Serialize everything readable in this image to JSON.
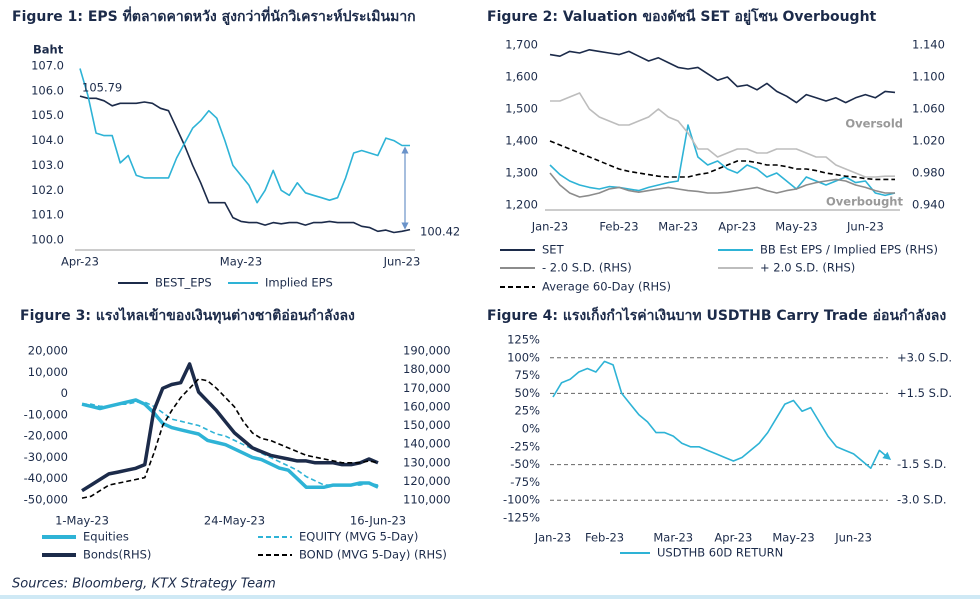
{
  "chart_data": [
    {
      "type": "line",
      "title": "Figure 1: EPS ที่ตลาดคาดหวัง สูงกว่าที่นักวิเคราะห์ประเมินมาก",
      "ylabel": "Baht",
      "categories": [
        "Apr-23",
        null,
        null,
        null,
        null,
        null,
        null,
        null,
        null,
        null,
        null,
        null,
        null,
        null,
        null,
        null,
        null,
        null,
        null,
        null,
        "May-23",
        null,
        null,
        null,
        null,
        null,
        null,
        null,
        null,
        null,
        null,
        null,
        null,
        null,
        null,
        null,
        null,
        null,
        null,
        null,
        "Jun-23",
        null
      ],
      "ylim": [
        100,
        107
      ],
      "yticks": [
        {
          "value": 100,
          "label": "100.0"
        },
        {
          "value": 101,
          "label": "101.0"
        },
        {
          "value": 102,
          "label": "102.0"
        },
        {
          "value": 103,
          "label": "103.0"
        },
        {
          "value": 104,
          "label": "104.0"
        },
        {
          "value": 105,
          "label": "105.0"
        },
        {
          "value": 106,
          "label": "106.0"
        },
        {
          "value": 107,
          "label": "107.0"
        }
      ],
      "series": [
        {
          "name": "BEST_EPS",
          "color": "#1c2b4a",
          "line_style": "solid",
          "values": [
            105.79,
            105.7,
            105.7,
            105.6,
            105.4,
            105.5,
            105.5,
            105.5,
            105.55,
            105.5,
            105.3,
            105.2,
            104.5,
            103.8,
            103.0,
            102.3,
            101.5,
            101.5,
            101.5,
            100.9,
            100.75,
            100.7,
            100.7,
            100.6,
            100.7,
            100.65,
            100.7,
            100.7,
            100.6,
            100.7,
            100.7,
            100.75,
            100.7,
            100.7,
            100.7,
            100.55,
            100.5,
            100.35,
            100.4,
            100.3,
            100.35,
            100.42
          ]
        },
        {
          "name": "Implied EPS",
          "color": "#2eb3d6",
          "line_style": "solid",
          "values": [
            106.9,
            105.8,
            104.3,
            104.2,
            104.2,
            103.1,
            103.4,
            102.6,
            102.5,
            102.5,
            102.5,
            102.5,
            103.3,
            103.9,
            104.5,
            104.8,
            105.2,
            104.9,
            104.0,
            103.0,
            102.6,
            102.2,
            101.5,
            102.0,
            102.8,
            102.0,
            101.8,
            102.3,
            101.9,
            101.8,
            101.7,
            101.6,
            101.7,
            102.5,
            103.5,
            103.6,
            103.5,
            103.4,
            104.1,
            104.0,
            103.8,
            103.8
          ]
        }
      ],
      "annotations": [
        "105.79",
        "100.42"
      ]
    },
    {
      "type": "line",
      "title": "Figure 2: Valuation ของดัชนี SET อยู่โซน Overbought",
      "categories": [
        "Jan-23",
        null,
        null,
        null,
        null,
        null,
        null,
        "Feb-23",
        null,
        null,
        null,
        null,
        null,
        "Mar-23",
        null,
        null,
        null,
        null,
        null,
        "Apr-23",
        null,
        null,
        null,
        null,
        null,
        "May-23",
        null,
        null,
        null,
        null,
        null,
        null,
        "Jun-23",
        null,
        null,
        null
      ],
      "ylim": [
        1200,
        1700
      ],
      "yticks": [
        {
          "value": 1200,
          "label": "1,200"
        },
        {
          "value": 1300,
          "label": "1,300"
        },
        {
          "value": 1400,
          "label": "1,400"
        },
        {
          "value": 1500,
          "label": "1,500"
        },
        {
          "value": 1600,
          "label": "1,600"
        },
        {
          "value": 1700,
          "label": "1,700"
        }
      ],
      "y2lim": [
        0.94,
        1.14
      ],
      "y2ticks": [
        {
          "value": 0.94,
          "label": "0.940"
        },
        {
          "value": 0.98,
          "label": "0.980"
        },
        {
          "value": 1.02,
          "label": "1.020"
        },
        {
          "value": 1.06,
          "label": "1.060"
        },
        {
          "value": 1.1,
          "label": "1.100"
        },
        {
          "value": 1.14,
          "label": "1.140"
        }
      ],
      "series": [
        {
          "name": "SET",
          "color": "#1c2b4a",
          "line_style": "solid",
          "values": [
            1670,
            1665,
            1680,
            1675,
            1685,
            1680,
            1675,
            1670,
            1680,
            1665,
            1650,
            1660,
            1645,
            1630,
            1625,
            1630,
            1610,
            1590,
            1600,
            1570,
            1575,
            1560,
            1580,
            1555,
            1540,
            1520,
            1545,
            1535,
            1525,
            1535,
            1520,
            1535,
            1545,
            1535,
            1555,
            1552
          ]
        },
        {
          "name": "BB Est EPS / Implied EPS (RHS)",
          "color": "#2eb3d6",
          "axis": "y2",
          "line_style": "solid",
          "values": [
            0.99,
            0.978,
            0.97,
            0.965,
            0.962,
            0.96,
            0.963,
            0.962,
            0.96,
            0.958,
            0.962,
            0.965,
            0.968,
            0.97,
            1.04,
            1.0,
            0.99,
            0.995,
            0.985,
            0.98,
            0.99,
            0.985,
            0.975,
            0.98,
            0.97,
            0.96,
            0.975,
            0.97,
            0.965,
            0.97,
            0.975,
            0.968,
            0.97,
            0.955,
            0.952,
            0.955
          ]
        },
        {
          "name": "- 2.0 S.D. (RHS)",
          "color": "#8c8c8c",
          "axis": "y2",
          "line_style": "solid",
          "values": [
            0.98,
            0.965,
            0.955,
            0.95,
            0.952,
            0.955,
            0.96,
            0.962,
            0.958,
            0.956,
            0.958,
            0.96,
            0.962,
            0.96,
            0.958,
            0.957,
            0.955,
            0.955,
            0.956,
            0.958,
            0.96,
            0.962,
            0.958,
            0.955,
            0.958,
            0.96,
            0.965,
            0.968,
            0.97,
            0.972,
            0.97,
            0.965,
            0.962,
            0.958,
            0.955,
            0.955
          ]
        },
        {
          "name": "+ 2.0 S.D. (RHS)",
          "color": "#bdbdbd",
          "axis": "y2",
          "line_style": "solid",
          "values": [
            1.07,
            1.07,
            1.075,
            1.08,
            1.06,
            1.05,
            1.045,
            1.04,
            1.04,
            1.045,
            1.05,
            1.06,
            1.05,
            1.045,
            1.03,
            1.01,
            1.01,
            1.0,
            1.005,
            1.01,
            1.01,
            1.005,
            1.005,
            1.01,
            1.01,
            1.01,
            1.005,
            1.0,
            1.0,
            0.99,
            0.985,
            0.98,
            0.975,
            0.975,
            0.976,
            0.976
          ]
        },
        {
          "name": "Average 60-Day (RHS)",
          "color": "#000000",
          "axis": "y2",
          "line_style": "dashed",
          "values": [
            1.02,
            1.015,
            1.01,
            1.005,
            1.0,
            0.995,
            0.99,
            0.985,
            0.982,
            0.98,
            0.978,
            0.976,
            0.975,
            0.975,
            0.975,
            0.978,
            0.98,
            0.985,
            0.99,
            0.995,
            0.995,
            0.993,
            0.99,
            0.99,
            0.988,
            0.985,
            0.985,
            0.983,
            0.98,
            0.978,
            0.976,
            0.975,
            0.973,
            0.972,
            0.972,
            0.972
          ]
        }
      ],
      "annotations": [
        "Oversold",
        "Overbought"
      ]
    },
    {
      "type": "line",
      "title": "Figure 3: แรงไหลเข้าของเงินทุนต่างชาติอ่อนกำลังลง",
      "categories": [
        "1-May-23",
        null,
        null,
        null,
        null,
        null,
        null,
        null,
        null,
        null,
        null,
        null,
        null,
        null,
        null,
        null,
        null,
        "24-May-23",
        null,
        null,
        null,
        null,
        null,
        null,
        null,
        null,
        null,
        null,
        null,
        null,
        null,
        null,
        null,
        "16-Jun-23"
      ],
      "ylim": [
        -50000,
        20000
      ],
      "yticks": [
        {
          "value": -50000,
          "label": "-50,000"
        },
        {
          "value": -40000,
          "label": "-40,000"
        },
        {
          "value": -30000,
          "label": "-30,000"
        },
        {
          "value": -20000,
          "label": "-20,000"
        },
        {
          "value": -10000,
          "label": "-10,000"
        },
        0,
        {
          "value": 10000,
          "label": "10,000"
        },
        {
          "value": 20000,
          "label": "20,000"
        }
      ],
      "y2lim": [
        110000,
        190000
      ],
      "y2ticks": [
        {
          "value": 110000,
          "label": "110,000"
        },
        {
          "value": 120000,
          "label": "120,000"
        },
        {
          "value": 130000,
          "label": "130,000"
        },
        {
          "value": 140000,
          "label": "140,000"
        },
        {
          "value": 150000,
          "label": "150,000"
        },
        {
          "value": 160000,
          "label": "160,000"
        },
        {
          "value": 170000,
          "label": "170,000"
        },
        {
          "value": 180000,
          "label": "180,000"
        },
        {
          "value": 190000,
          "label": "190,000"
        }
      ],
      "series": [
        {
          "name": "Equities",
          "color": "#2eb3d6",
          "line_style": "thick",
          "values": [
            -5000,
            -6000,
            -7000,
            -6000,
            -5000,
            -4000,
            -3000,
            -5000,
            -9000,
            -14000,
            -16000,
            -17000,
            -18000,
            -19000,
            -22000,
            -23000,
            -24000,
            -26000,
            -28000,
            -30000,
            -31000,
            -33000,
            -35000,
            -36000,
            -40000,
            -44000,
            -44000,
            -44000,
            -43000,
            -43000,
            -43000,
            -42000,
            -42000,
            -44000
          ]
        },
        {
          "name": "EQUITY (MVG 5-Day)",
          "color": "#2eb3d6",
          "line_style": "dashed",
          "values": [
            -5000,
            -5000,
            -6000,
            -6000,
            -5000,
            -5000,
            -4000,
            -4000,
            -6000,
            -9000,
            -12000,
            -13000,
            -14000,
            -15000,
            -17000,
            -19000,
            -20000,
            -22000,
            -24000,
            -26000,
            -28000,
            -30000,
            -32000,
            -34000,
            -36000,
            -39000,
            -41000,
            -43000,
            -43000,
            -43000,
            -43000,
            -43000,
            -42000,
            -43000
          ]
        },
        {
          "name": "Bonds(RHS)",
          "color": "#1c2b4a",
          "axis": "y2",
          "line_style": "thick",
          "values": [
            115000,
            118000,
            121000,
            124000,
            125000,
            126000,
            127000,
            129000,
            158000,
            170000,
            172000,
            173000,
            183000,
            168000,
            163000,
            158000,
            152000,
            146000,
            142000,
            138000,
            136000,
            134000,
            133000,
            132000,
            131000,
            131000,
            130000,
            130000,
            130000,
            129000,
            129000,
            130000,
            132000,
            130000
          ]
        },
        {
          "name": "BOND (MVG 5-Day) (RHS)",
          "color": "#000000",
          "axis": "y2",
          "line_style": "dashed",
          "values": [
            111000,
            112000,
            115000,
            118000,
            119000,
            120000,
            121000,
            122000,
            135000,
            150000,
            158000,
            165000,
            170000,
            175000,
            174000,
            170000,
            165000,
            160000,
            152000,
            146000,
            143000,
            142000,
            140000,
            138000,
            136000,
            134000,
            133000,
            132000,
            131000,
            130000,
            130000,
            130000,
            131000,
            130000
          ]
        }
      ]
    },
    {
      "type": "line",
      "title": "Figure 4: แรงเก็งกำไรค่าเงินบาท USDTHB Carry Trade อ่อนกำลังลง",
      "categories": [
        "Jan-23",
        null,
        null,
        null,
        null,
        null,
        "Feb-23",
        null,
        null,
        null,
        null,
        null,
        null,
        null,
        "Mar-23",
        null,
        null,
        null,
        null,
        null,
        null,
        "Apr-23",
        null,
        null,
        null,
        null,
        null,
        null,
        "May-23",
        null,
        null,
        null,
        null,
        null,
        null,
        "Jun-23",
        null,
        null,
        null,
        null
      ],
      "ylim": [
        -125,
        125
      ],
      "yticks": [
        {
          "value": -125,
          "label": "-125%"
        },
        {
          "value": -100,
          "label": "-100%"
        },
        {
          "value": -75,
          "label": "-75%"
        },
        {
          "value": -50,
          "label": "-50%"
        },
        {
          "value": -25,
          "label": "-25%"
        },
        {
          "value": 0,
          "label": "0%"
        },
        {
          "value": 25,
          "label": "25%"
        },
        {
          "value": 50,
          "label": "50%"
        },
        {
          "value": 75,
          "label": "75%"
        },
        {
          "value": 100,
          "label": "100%"
        },
        {
          "value": 125,
          "label": "125%"
        }
      ],
      "reference_lines": [
        {
          "value": 100,
          "label": "+3.0 S.D."
        },
        {
          "value": 50,
          "label": "+1.5 S.D."
        },
        {
          "value": -50,
          "label": "-1.5 S.D."
        },
        {
          "value": -100,
          "label": "-3.0 S.D."
        }
      ],
      "series": [
        {
          "name": "USDTHB 60D RETURN",
          "color": "#2eb3d6",
          "line_style": "solid",
          "values": [
            45,
            65,
            70,
            80,
            85,
            80,
            95,
            90,
            50,
            35,
            20,
            10,
            -5,
            -5,
            -10,
            -20,
            -25,
            -25,
            -30,
            -35,
            -40,
            -45,
            -40,
            -30,
            -20,
            -5,
            15,
            35,
            40,
            25,
            30,
            10,
            -10,
            -25,
            -30,
            -35,
            -45,
            -55,
            -30,
            -40
          ]
        }
      ]
    }
  ],
  "source": "Sources: Bloomberg, KTX Strategy Team"
}
